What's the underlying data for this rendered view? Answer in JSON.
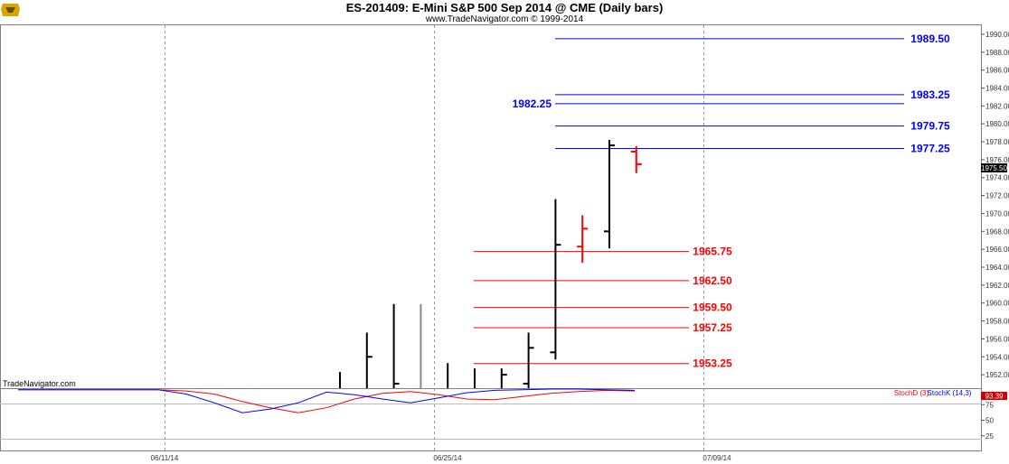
{
  "title": "ES-201409:  E-Mini S&P 500 Sep 2014 @ CME  (Daily bars)",
  "subtitle": "www.TradeNavigator.com © 1999-2014",
  "watermark": "TradeNavigator.com",
  "logo_icon": "trade-navigator-logo-icon",
  "colors": {
    "blue_levels": "#0000ff",
    "red_levels": "#ff0000",
    "bars": "#000000",
    "grid": "#999999",
    "price_label_bg": "#000000",
    "stoch_label_bg": "#cc0000"
  },
  "chart_data": [
    {
      "type": "ohlc",
      "ylim": [
        1950.5,
        1991
      ],
      "y_ticks": [
        "1990.00",
        "1988.00",
        "1986.00",
        "1984.00",
        "1982.00",
        "1980.00",
        "1978.00",
        "1976.00",
        "1974.00",
        "1972.00",
        "1970.00",
        "1968.00",
        "1966.00",
        "1964.00",
        "1962.00",
        "1960.00",
        "1958.00",
        "1956.00",
        "1954.00",
        "1952.00"
      ],
      "x_ticks": [
        "06/11/14",
        "06/25/14",
        "07/09/14"
      ],
      "last_price_label": "1975.50",
      "bars": [
        {
          "o": null,
          "h": 1952.3,
          "l": 1950.5,
          "c": null,
          "color": "black"
        },
        {
          "o": null,
          "h": 1956.7,
          "l": 1950.5,
          "c": 1954.0,
          "color": "black"
        },
        {
          "o": null,
          "h": 1959.9,
          "l": 1950.5,
          "c": 1951.0,
          "color": "black"
        },
        {
          "o": null,
          "h": 1959.9,
          "l": 1950.5,
          "c": null,
          "color": "gray"
        },
        {
          "o": null,
          "h": 1953.3,
          "l": 1950.5,
          "c": null,
          "color": "black"
        },
        {
          "o": null,
          "h": 1952.7,
          "l": 1950.5,
          "c": null,
          "color": "black"
        },
        {
          "o": null,
          "h": 1952.7,
          "l": 1950.5,
          "c": 1952.0,
          "color": "black"
        },
        {
          "o": 1951.0,
          "h": 1956.7,
          "l": 1950.5,
          "c": 1955.0,
          "color": "black"
        },
        {
          "o": 1954.5,
          "h": 1971.6,
          "l": 1953.7,
          "c": 1966.5,
          "color": "black"
        },
        {
          "o": 1966.3,
          "h": 1969.8,
          "l": 1964.5,
          "c": 1968.3,
          "color": "red"
        },
        {
          "o": 1968.0,
          "h": 1978.2,
          "l": 1966.1,
          "c": 1977.6,
          "color": "black"
        },
        {
          "o": 1976.9,
          "h": 1977.5,
          "l": 1974.5,
          "c": 1975.5,
          "color": "red"
        }
      ],
      "levels_blue": [
        {
          "value": 1989.5,
          "label": "1989.50"
        },
        {
          "value": 1983.25,
          "label": "1983.25"
        },
        {
          "value": 1982.25,
          "label": "1982.25"
        },
        {
          "value": 1979.75,
          "label": "1979.75"
        },
        {
          "value": 1977.25,
          "label": "1977.25"
        }
      ],
      "levels_red": [
        {
          "value": 1965.75,
          "label": "1965.75"
        },
        {
          "value": 1962.5,
          "label": "1962.50"
        },
        {
          "value": 1959.5,
          "label": "1959.50"
        },
        {
          "value": 1957.25,
          "label": "1957.25"
        },
        {
          "value": 1953.25,
          "label": "1953.25"
        }
      ]
    },
    {
      "type": "line",
      "ylim": [
        0,
        100
      ],
      "y_ticks": [
        "75",
        "50",
        "25"
      ],
      "grid_lines": [
        80,
        20
      ],
      "last_value_label": "93.39",
      "legend": [
        "StochD (3)",
        "StochK (14,3)"
      ],
      "series": [
        {
          "name": "StochD (3)",
          "color": "#ff0000",
          "values": [
            99,
            99,
            99,
            99,
            99,
            99,
            97,
            92,
            80,
            70,
            62,
            70,
            84,
            93,
            96,
            91,
            84,
            83,
            88,
            93,
            96,
            98,
            97
          ]
        },
        {
          "name": "StochK (14,3)",
          "color": "#0000ff",
          "values": [
            99,
            99,
            99,
            99,
            99,
            99,
            92,
            78,
            62,
            68,
            78,
            95,
            91,
            84,
            78,
            86,
            94,
            98,
            99,
            100,
            100,
            99,
            98
          ]
        }
      ]
    }
  ]
}
